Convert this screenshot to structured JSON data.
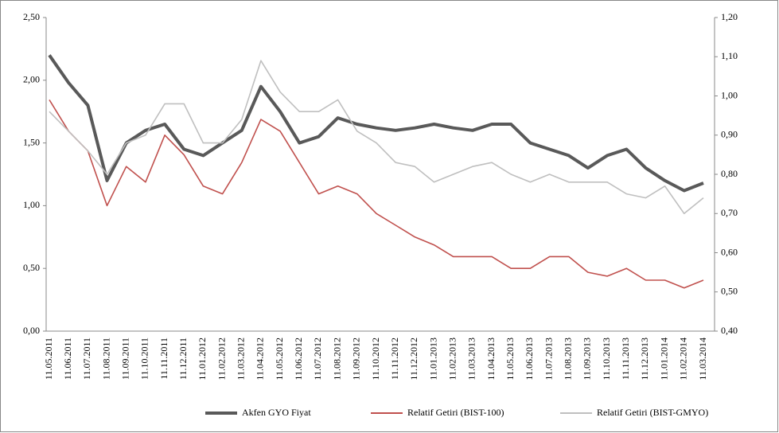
{
  "chart_data": {
    "type": "line",
    "categories": [
      "11.05.2011",
      "11.06.2011",
      "11.07.2011",
      "11.08.2011",
      "11.09.2011",
      "11.10.2011",
      "11.11.2011",
      "11.12.2011",
      "11.01.2012",
      "11.02.2012",
      "11.03.2012",
      "11.04.2012",
      "11.05.2012",
      "11.06.2012",
      "11.07.2012",
      "11.08.2012",
      "11.09.2012",
      "11.10.2012",
      "11.11.2012",
      "11.12.2012",
      "11.01.2013",
      "11.02.2013",
      "11.03.2013",
      "11.04.2013",
      "11.05.2013",
      "11.06.2013",
      "11.07.2013",
      "11.08.2013",
      "11.09.2013",
      "11.10.2013",
      "11.11.2013",
      "11.12.2013",
      "11.01.2014",
      "11.02.2014",
      "11.03.2014"
    ],
    "series": [
      {
        "name": "Akfen GYO Fiyat",
        "color": "#595959",
        "values": [
          2.2,
          1.98,
          1.8,
          1.2,
          1.5,
          1.6,
          1.65,
          1.45,
          1.4,
          1.5,
          1.6,
          1.95,
          1.75,
          1.5,
          1.55,
          1.7,
          1.65,
          1.62,
          1.6,
          1.62,
          1.65,
          1.62,
          1.6,
          1.65,
          1.65,
          1.5,
          1.45,
          1.4,
          1.3,
          1.4,
          1.45,
          1.3,
          1.2,
          1.12,
          1.18
        ]
      },
      {
        "name": "Relatif Getiri (BIST-100)",
        "color": "#c0504d",
        "axis": "y2",
        "values": [
          0.99,
          0.91,
          0.86,
          0.72,
          0.82,
          0.78,
          0.9,
          0.85,
          0.77,
          0.75,
          0.83,
          0.94,
          0.91,
          0.83,
          0.75,
          0.77,
          0.75,
          0.7,
          0.67,
          0.64,
          0.62,
          0.59,
          0.59,
          0.59,
          0.56,
          0.56,
          0.59,
          0.59,
          0.55,
          0.54,
          0.56,
          0.53,
          0.53,
          0.51,
          0.53
        ]
      },
      {
        "name": "Relatif Getiri (BIST-GMYO)",
        "color": "#bfbfbf",
        "axis": "y2",
        "values": [
          0.96,
          0.91,
          0.86,
          0.8,
          0.88,
          0.9,
          0.98,
          0.98,
          0.88,
          0.88,
          0.94,
          1.09,
          1.01,
          0.96,
          0.96,
          0.99,
          0.91,
          0.88,
          0.83,
          0.82,
          0.78,
          0.8,
          0.82,
          0.83,
          0.8,
          0.78,
          0.8,
          0.78,
          0.78,
          0.78,
          0.75,
          0.74,
          0.77,
          0.7,
          0.74
        ]
      }
    ],
    "ylim": [
      0,
      2.5
    ],
    "yticks": [
      {
        "value": 0,
        "label": "0,00"
      },
      {
        "value": 0.5,
        "label": "0,50"
      },
      {
        "value": 1,
        "label": "1,00"
      },
      {
        "value": 1.5,
        "label": "1,50"
      },
      {
        "value": 2,
        "label": "2,00"
      },
      {
        "value": 2.5,
        "label": "2,50"
      }
    ],
    "y2lim": [
      0.4,
      1.2
    ],
    "y2ticks": [
      {
        "value": 0.4,
        "label": "0,40"
      },
      {
        "value": 0.5,
        "label": "0,50"
      },
      {
        "value": 0.6,
        "label": "0,60"
      },
      {
        "value": 0.7,
        "label": "0,70"
      },
      {
        "value": 0.8,
        "label": "0,80"
      },
      {
        "value": 0.9,
        "label": "0,90"
      },
      {
        "value": 1.0,
        "label": "1,00"
      },
      {
        "value": 1.1,
        "label": "1,10"
      },
      {
        "value": 1.2,
        "label": "1,20"
      }
    ],
    "legend": "bottom"
  }
}
